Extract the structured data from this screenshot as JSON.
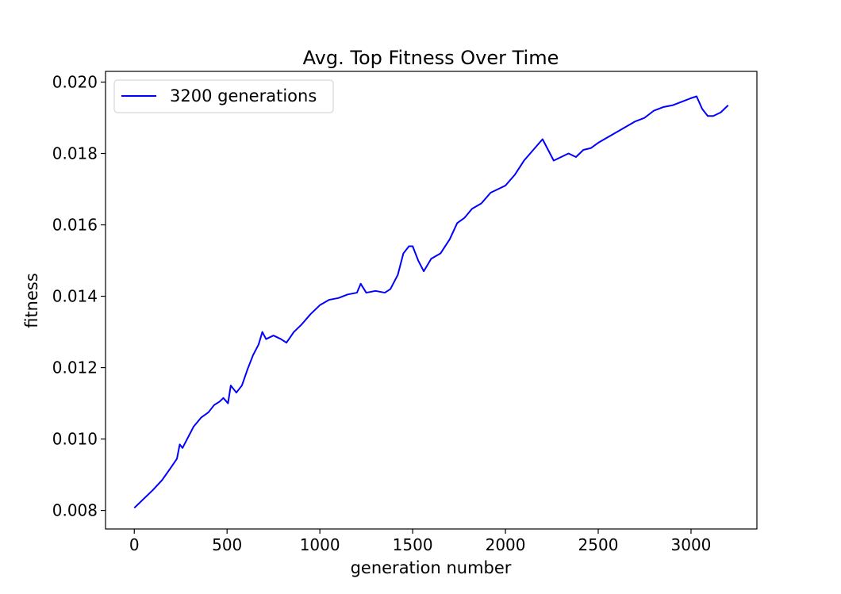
{
  "chart_data": {
    "type": "line",
    "title": "Avg. Top Fitness Over Time",
    "xlabel": "generation number",
    "ylabel": "fitness",
    "xlim": [
      -155,
      3355
    ],
    "ylim": [
      0.00748,
      0.0203
    ],
    "x_ticks": [
      0,
      500,
      1000,
      1500,
      2000,
      2500,
      3000
    ],
    "x_tick_labels": [
      "0",
      "500",
      "1000",
      "1500",
      "2000",
      "2500",
      "3000"
    ],
    "y_ticks": [
      0.008,
      0.01,
      0.012,
      0.014,
      0.016,
      0.018,
      0.02
    ],
    "y_tick_labels": [
      "0.008",
      "0.010",
      "0.012",
      "0.014",
      "0.016",
      "0.018",
      "0.020"
    ],
    "grid": false,
    "legend_position": "top-left",
    "series": [
      {
        "name": "3200 generations",
        "color": "#0000ff",
        "points": [
          [
            0,
            0.00807
          ],
          [
            50,
            0.00832
          ],
          [
            100,
            0.00857
          ],
          [
            150,
            0.00885
          ],
          [
            200,
            0.00922
          ],
          [
            230,
            0.00945
          ],
          [
            245,
            0.00985
          ],
          [
            260,
            0.00975
          ],
          [
            290,
            0.01005
          ],
          [
            320,
            0.01035
          ],
          [
            360,
            0.0106
          ],
          [
            400,
            0.01075
          ],
          [
            430,
            0.01095
          ],
          [
            460,
            0.01105
          ],
          [
            480,
            0.01115
          ],
          [
            505,
            0.011
          ],
          [
            520,
            0.0115
          ],
          [
            550,
            0.0113
          ],
          [
            580,
            0.0115
          ],
          [
            610,
            0.01195
          ],
          [
            640,
            0.01235
          ],
          [
            670,
            0.01265
          ],
          [
            690,
            0.013
          ],
          [
            710,
            0.0128
          ],
          [
            750,
            0.0129
          ],
          [
            790,
            0.0128
          ],
          [
            820,
            0.0127
          ],
          [
            860,
            0.013
          ],
          [
            900,
            0.0132
          ],
          [
            950,
            0.0135
          ],
          [
            1000,
            0.01375
          ],
          [
            1050,
            0.0139
          ],
          [
            1100,
            0.01395
          ],
          [
            1150,
            0.01405
          ],
          [
            1200,
            0.0141
          ],
          [
            1220,
            0.01435
          ],
          [
            1250,
            0.0141
          ],
          [
            1300,
            0.01415
          ],
          [
            1350,
            0.0141
          ],
          [
            1380,
            0.0142
          ],
          [
            1420,
            0.0146
          ],
          [
            1450,
            0.0152
          ],
          [
            1480,
            0.0154
          ],
          [
            1500,
            0.0154
          ],
          [
            1530,
            0.015
          ],
          [
            1560,
            0.0147
          ],
          [
            1600,
            0.01505
          ],
          [
            1650,
            0.0152
          ],
          [
            1700,
            0.0156
          ],
          [
            1740,
            0.01605
          ],
          [
            1780,
            0.0162
          ],
          [
            1820,
            0.01645
          ],
          [
            1870,
            0.0166
          ],
          [
            1920,
            0.0169
          ],
          [
            1960,
            0.017
          ],
          [
            2000,
            0.0171
          ],
          [
            2050,
            0.0174
          ],
          [
            2100,
            0.0178
          ],
          [
            2150,
            0.0181
          ],
          [
            2200,
            0.0184
          ],
          [
            2230,
            0.0181
          ],
          [
            2260,
            0.0178
          ],
          [
            2300,
            0.0179
          ],
          [
            2340,
            0.018
          ],
          [
            2380,
            0.0179
          ],
          [
            2420,
            0.0181
          ],
          [
            2460,
            0.01815
          ],
          [
            2500,
            0.0183
          ],
          [
            2550,
            0.01845
          ],
          [
            2600,
            0.0186
          ],
          [
            2650,
            0.01875
          ],
          [
            2700,
            0.0189
          ],
          [
            2750,
            0.019
          ],
          [
            2800,
            0.0192
          ],
          [
            2850,
            0.0193
          ],
          [
            2900,
            0.01935
          ],
          [
            2950,
            0.01945
          ],
          [
            3000,
            0.01955
          ],
          [
            3030,
            0.0196
          ],
          [
            3060,
            0.01925
          ],
          [
            3090,
            0.01905
          ],
          [
            3120,
            0.01905
          ],
          [
            3160,
            0.01915
          ],
          [
            3200,
            0.01935
          ]
        ]
      }
    ]
  }
}
